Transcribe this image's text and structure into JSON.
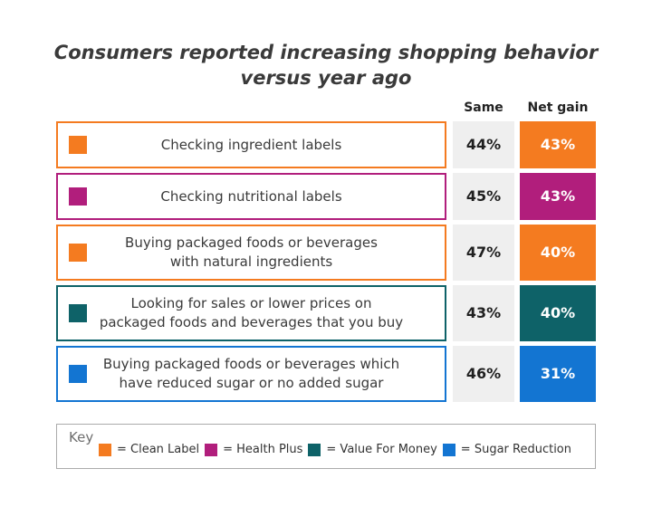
{
  "title": {
    "line1": "Consumers reported increasing shopping behavior",
    "line2": "versus year ago"
  },
  "columns": {
    "same": "Same",
    "net_gain": "Net gain"
  },
  "colors": {
    "clean_label": "#F47B20",
    "health_plus": "#B11E7C",
    "value_for_money": "#0E6268",
    "sugar_reduction": "#1375D2",
    "same_cell_bg": "#EFEFEF",
    "text_dark": "#3A3A3A",
    "key_border": "#ABABAB"
  },
  "rows": [
    {
      "label": "Checking ingredient labels",
      "category": "Clean Label",
      "color": "#F47B20",
      "same": "44%",
      "net_gain": "43%"
    },
    {
      "label": "Checking nutritional labels",
      "category": "Health Plus",
      "color": "#B11E7C",
      "same": "45%",
      "net_gain": "43%"
    },
    {
      "label": "Buying packaged foods or beverages\nwith natural ingredients",
      "category": "Clean Label",
      "color": "#F47B20",
      "same": "47%",
      "net_gain": "40%"
    },
    {
      "label": "Looking for sales or lower prices on\npackaged foods and beverages that you buy",
      "category": "Value For Money",
      "color": "#0E6268",
      "same": "43%",
      "net_gain": "40%"
    },
    {
      "label": "Buying packaged foods or beverages which\nhave reduced sugar or no added sugar",
      "category": "Sugar Reduction",
      "color": "#1375D2",
      "same": "46%",
      "net_gain": "31%"
    }
  ],
  "key": {
    "label": "Key",
    "items": [
      {
        "label": "= Clean Label",
        "name": "Clean Label",
        "color": "#F47B20"
      },
      {
        "label": "= Health Plus",
        "name": "Health Plus",
        "color": "#B11E7C"
      },
      {
        "label": "= Value For Money",
        "name": "Value For Money",
        "color": "#0E6268"
      },
      {
        "label": "= Sugar Reduction",
        "name": "Sugar Reduction",
        "color": "#1375D2"
      }
    ]
  },
  "chart_data": {
    "type": "table",
    "title": "Consumers reported increasing shopping behavior versus year ago",
    "columns": [
      "Same",
      "Net gain"
    ],
    "categories": [
      "Checking ingredient labels",
      "Checking nutritional labels",
      "Buying packaged foods or beverages with natural ingredients",
      "Looking for sales or lower prices on packaged foods and beverages that you buy",
      "Buying packaged foods or beverages which have reduced sugar or no added sugar"
    ],
    "series": [
      {
        "name": "Same",
        "values": [
          44,
          45,
          47,
          43,
          46
        ]
      },
      {
        "name": "Net gain",
        "values": [
          43,
          43,
          40,
          40,
          31
        ]
      }
    ],
    "row_segments": [
      "Clean Label",
      "Health Plus",
      "Clean Label",
      "Value For Money",
      "Sugar Reduction"
    ],
    "legend": [
      {
        "label": "Clean Label",
        "color": "#F47B20"
      },
      {
        "label": "Health Plus",
        "color": "#B11E7C"
      },
      {
        "label": "Value For Money",
        "color": "#0E6268"
      },
      {
        "label": "Sugar Reduction",
        "color": "#1375D2"
      }
    ],
    "legend_position": "bottom",
    "units": "%"
  }
}
